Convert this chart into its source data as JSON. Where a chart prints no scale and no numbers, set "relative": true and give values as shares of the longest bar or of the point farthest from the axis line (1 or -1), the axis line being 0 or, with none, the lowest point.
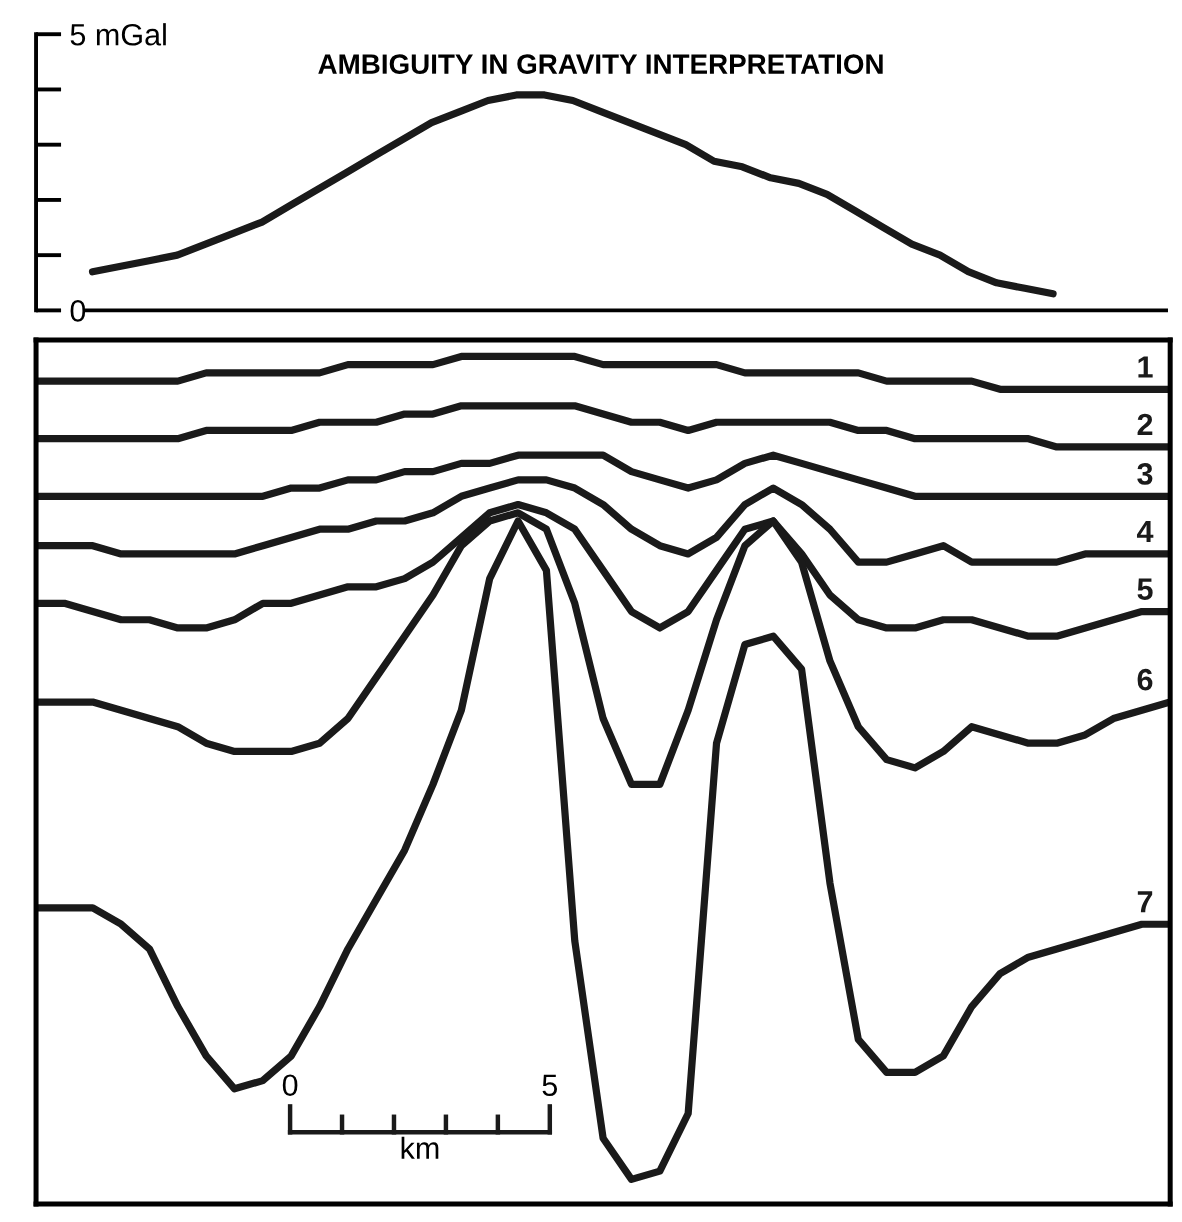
{
  "chart_data": [
    {
      "type": "line",
      "title": "AMBIGUITY IN GRAVITY INTERPRETATION",
      "categories": [
        null,
        null,
        null,
        null,
        null,
        null,
        null,
        null,
        null,
        null,
        null,
        null,
        null,
        null,
        null,
        null,
        null,
        null,
        null,
        null,
        null,
        null,
        null,
        null,
        null,
        null,
        null,
        null,
        null,
        null,
        null,
        null,
        null,
        null,
        null,
        null,
        null,
        null,
        null,
        null,
        null
      ],
      "series": [
        {
          "color": "#1a1a1a",
          "values": [
            null,
            null,
            0.7,
            0.8,
            0.9,
            1.0,
            1.2,
            1.4,
            1.6,
            1.9,
            2.2,
            2.5,
            2.8,
            3.1,
            3.4,
            3.6,
            3.8,
            3.9,
            3.9,
            3.8,
            3.6,
            3.4,
            3.2,
            3.0,
            2.7,
            2.6,
            2.4,
            2.3,
            2.1,
            1.8,
            1.5,
            1.2,
            1.0,
            0.7,
            0.5,
            0.4,
            0.3,
            null,
            null,
            null,
            null
          ]
        }
      ],
      "ylim": [
        0,
        5
      ],
      "yticks": [
        0,
        {
          "value": 1,
          "label": null
        },
        {
          "value": 2,
          "label": null
        },
        {
          "value": 3,
          "label": null
        },
        {
          "value": 4,
          "label": null
        },
        {
          "value": 5,
          "label": "5 mGal"
        }
      ],
      "tick_labels": "y",
      "marker": "none",
      "line_style": "solid"
    },
    {
      "type": "line",
      "relative": true,
      "categories": [
        null,
        null,
        null,
        null,
        null,
        null,
        null,
        null,
        null,
        null,
        null,
        null,
        null,
        null,
        null,
        null,
        null,
        null,
        null,
        null,
        null,
        null,
        null,
        null,
        null,
        null,
        null,
        null,
        null,
        null,
        null,
        null,
        null,
        null,
        null,
        null,
        null,
        null,
        null,
        null,
        null
      ],
      "series": [
        {
          "name": "1",
          "color": "#1a1a1a",
          "values": [
            0.97,
            0.97,
            0.97,
            0.97,
            0.97,
            0.97,
            0.98,
            0.98,
            0.98,
            0.98,
            0.98,
            0.99,
            0.99,
            0.99,
            0.99,
            1.0,
            1.0,
            1.0,
            1.0,
            1.0,
            0.99,
            0.99,
            0.99,
            0.99,
            0.99,
            0.98,
            0.98,
            0.98,
            0.98,
            0.98,
            0.97,
            0.97,
            0.97,
            0.97,
            0.96,
            0.96,
            0.96,
            0.96,
            0.96,
            0.96,
            0.96
          ]
        },
        {
          "name": "2",
          "color": "#1a1a1a",
          "values": [
            0.9,
            0.9,
            0.9,
            0.9,
            0.9,
            0.9,
            0.91,
            0.91,
            0.91,
            0.91,
            0.92,
            0.92,
            0.92,
            0.93,
            0.93,
            0.94,
            0.94,
            0.94,
            0.94,
            0.94,
            0.93,
            0.92,
            0.92,
            0.91,
            0.92,
            0.92,
            0.92,
            0.92,
            0.92,
            0.91,
            0.91,
            0.9,
            0.9,
            0.9,
            0.9,
            0.9,
            0.89,
            0.89,
            0.89,
            0.89,
            0.89
          ]
        },
        {
          "name": "3",
          "color": "#1a1a1a",
          "values": [
            0.83,
            0.83,
            0.83,
            0.83,
            0.83,
            0.83,
            0.83,
            0.83,
            0.83,
            0.84,
            0.84,
            0.85,
            0.85,
            0.86,
            0.86,
            0.87,
            0.87,
            0.88,
            0.88,
            0.88,
            0.88,
            0.86,
            0.85,
            0.84,
            0.85,
            0.87,
            0.88,
            0.87,
            0.86,
            0.85,
            0.84,
            0.83,
            0.83,
            0.83,
            0.83,
            0.83,
            0.83,
            0.83,
            0.83,
            0.83,
            0.83
          ]
        },
        {
          "name": "4",
          "color": "#1a1a1a",
          "values": [
            0.77,
            0.77,
            0.77,
            0.76,
            0.76,
            0.76,
            0.76,
            0.76,
            0.77,
            0.78,
            0.79,
            0.79,
            0.8,
            0.8,
            0.81,
            0.83,
            0.84,
            0.85,
            0.85,
            0.84,
            0.82,
            0.79,
            0.77,
            0.76,
            0.78,
            0.82,
            0.84,
            0.82,
            0.79,
            0.75,
            0.75,
            0.76,
            0.77,
            0.75,
            0.75,
            0.75,
            0.75,
            0.76,
            0.76,
            0.76,
            0.76
          ]
        },
        {
          "name": "5",
          "color": "#1a1a1a",
          "values": [
            0.7,
            0.7,
            0.69,
            0.68,
            0.68,
            0.67,
            0.67,
            0.68,
            0.7,
            0.7,
            0.71,
            0.72,
            0.72,
            0.73,
            0.75,
            0.78,
            0.81,
            0.82,
            0.81,
            0.79,
            0.74,
            0.69,
            0.67,
            0.69,
            0.74,
            0.79,
            0.8,
            0.76,
            0.71,
            0.68,
            0.67,
            0.67,
            0.68,
            0.68,
            0.67,
            0.66,
            0.66,
            0.67,
            0.68,
            0.69,
            0.69
          ]
        },
        {
          "name": "6",
          "color": "#1a1a1a",
          "values": [
            0.58,
            0.58,
            0.58,
            0.57,
            0.56,
            0.55,
            0.53,
            0.52,
            0.52,
            0.52,
            0.53,
            0.56,
            0.61,
            0.66,
            0.71,
            0.77,
            0.8,
            0.81,
            0.79,
            0.7,
            0.56,
            0.48,
            0.48,
            0.57,
            0.68,
            0.77,
            0.8,
            0.75,
            0.63,
            0.55,
            0.51,
            0.5,
            0.52,
            0.55,
            0.54,
            0.53,
            0.53,
            0.54,
            0.56,
            0.57,
            0.58
          ]
        },
        {
          "name": "7",
          "color": "#1a1a1a",
          "values": [
            0.33,
            0.33,
            0.33,
            0.31,
            0.28,
            0.21,
            0.15,
            0.11,
            0.12,
            0.15,
            0.21,
            0.28,
            0.34,
            0.4,
            0.48,
            0.57,
            0.73,
            0.8,
            0.74,
            0.29,
            0.05,
            0,
            0.01,
            0.08,
            0.53,
            0.65,
            0.66,
            0.62,
            0.36,
            0.17,
            0.13,
            0.13,
            0.15,
            0.21,
            0.25,
            0.27,
            0.28,
            0.29,
            0.3,
            0.31,
            0.31
          ]
        }
      ],
      "annotations": [
        "0",
        "5",
        "km"
      ],
      "tick_labels": false,
      "marker": "none",
      "line_style": "solid"
    }
  ]
}
